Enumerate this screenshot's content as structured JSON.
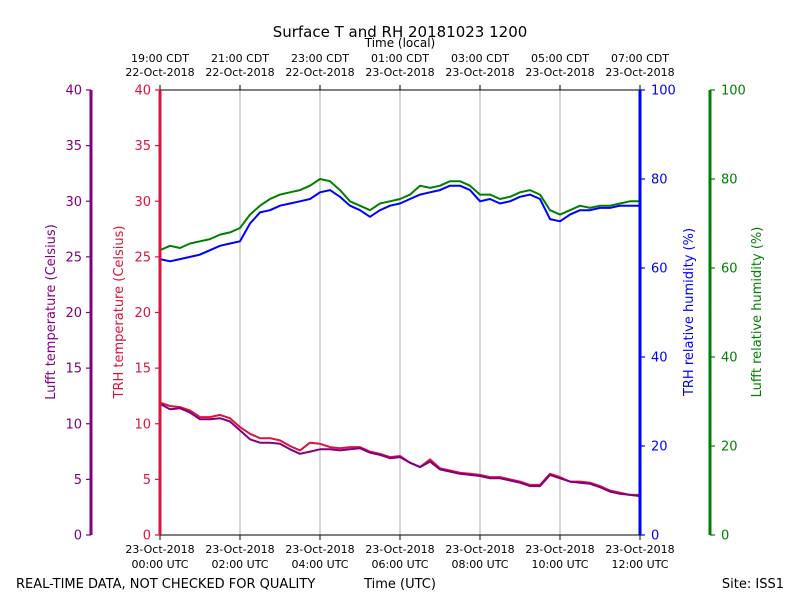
{
  "chart_data": {
    "type": "line",
    "title": "Surface T and RH 20181023 1200",
    "footer_left": "REAL-TIME DATA, NOT CHECKED FOR QUALITY",
    "footer_center": "Time (UTC)",
    "footer_right": "Site: ISS1",
    "top_axis_label": "Time (local)",
    "top_ticks": [
      {
        "line1": "19:00 CDT",
        "line2": "22-Oct-2018",
        "hour": 0
      },
      {
        "line1": "21:00 CDT",
        "line2": "22-Oct-2018",
        "hour": 2
      },
      {
        "line1": "23:00 CDT",
        "line2": "22-Oct-2018",
        "hour": 4
      },
      {
        "line1": "01:00 CDT",
        "line2": "23-Oct-2018",
        "hour": 6
      },
      {
        "line1": "03:00 CDT",
        "line2": "23-Oct-2018",
        "hour": 8
      },
      {
        "line1": "05:00 CDT",
        "line2": "23-Oct-2018",
        "hour": 10
      },
      {
        "line1": "07:00 CDT",
        "line2": "23-Oct-2018",
        "hour": 12
      }
    ],
    "bottom_ticks": [
      {
        "line1": "23-Oct-2018",
        "line2": "00:00 UTC",
        "hour": 0
      },
      {
        "line1": "23-Oct-2018",
        "line2": "02:00 UTC",
        "hour": 2
      },
      {
        "line1": "23-Oct-2018",
        "line2": "04:00 UTC",
        "hour": 4
      },
      {
        "line1": "23-Oct-2018",
        "line2": "06:00 UTC",
        "hour": 6
      },
      {
        "line1": "23-Oct-2018",
        "line2": "08:00 UTC",
        "hour": 8
      },
      {
        "line1": "23-Oct-2018",
        "line2": "10:00 UTC",
        "hour": 10
      },
      {
        "line1": "23-Oct-2018",
        "line2": "12:00 UTC",
        "hour": 12
      }
    ],
    "xlim_hours": [
      0,
      12
    ],
    "vertical_grid": true,
    "axes": {
      "lufft_temp": {
        "label": "Lufft temperature (Celsius)",
        "ylim": [
          0,
          40
        ],
        "ticks": [
          "0",
          "5",
          "10",
          "15",
          "20",
          "25",
          "30",
          "35",
          "40"
        ],
        "color": "#800080"
      },
      "trh_temp": {
        "label": "TRH temperature (Celsius)",
        "ylim": [
          0,
          40
        ],
        "ticks": [
          "0",
          "5",
          "10",
          "15",
          "20",
          "25",
          "30",
          "35",
          "40"
        ],
        "color": "#dc143c"
      },
      "trh_rh": {
        "label": "TRH relative humidity (%)",
        "ylim": [
          0,
          100
        ],
        "ticks": [
          "0",
          "20",
          "40",
          "60",
          "80",
          "100"
        ],
        "color": "#0000ff"
      },
      "lufft_rh": {
        "label": "Lufft relative humidity (%)",
        "ylim": [
          0,
          100
        ],
        "ticks": [
          "0",
          "20",
          "40",
          "60",
          "80",
          "100"
        ],
        "color": "#008000"
      }
    },
    "series": [
      {
        "axis": "lufft_rh",
        "color": "#008000",
        "x": [
          0,
          0.25,
          0.5,
          0.75,
          1,
          1.25,
          1.5,
          1.75,
          2,
          2.25,
          2.5,
          2.75,
          3,
          3.25,
          3.5,
          3.75,
          4,
          4.25,
          4.5,
          4.75,
          5,
          5.25,
          5.5,
          5.75,
          6,
          6.25,
          6.5,
          6.75,
          7,
          7.25,
          7.5,
          7.75,
          8,
          8.25,
          8.5,
          8.75,
          9,
          9.25,
          9.5,
          9.75,
          10,
          10.25,
          10.5,
          10.75,
          11,
          11.25,
          11.5,
          11.75,
          12
        ],
        "y": [
          64,
          65,
          64.5,
          65.5,
          66,
          66.5,
          67.5,
          68,
          69,
          72,
          74,
          75.5,
          76.5,
          77,
          77.5,
          78.5,
          80,
          79.5,
          77.5,
          75,
          74,
          73,
          74.5,
          75,
          75.5,
          76.5,
          78.5,
          78,
          78.5,
          79.5,
          79.5,
          78.5,
          76.5,
          76.5,
          75.5,
          76,
          77,
          77.5,
          76.5,
          73,
          72,
          73,
          74,
          73.5,
          74,
          74,
          74.5,
          75,
          75
        ]
      },
      {
        "axis": "trh_rh",
        "color": "#0000ff",
        "x": [
          0,
          0.25,
          0.5,
          0.75,
          1,
          1.25,
          1.5,
          1.75,
          2,
          2.25,
          2.5,
          2.75,
          3,
          3.25,
          3.5,
          3.75,
          4,
          4.25,
          4.5,
          4.75,
          5,
          5.25,
          5.5,
          5.75,
          6,
          6.25,
          6.5,
          6.75,
          7,
          7.25,
          7.5,
          7.75,
          8,
          8.25,
          8.5,
          8.75,
          9,
          9.25,
          9.5,
          9.75,
          10,
          10.25,
          10.5,
          10.75,
          11,
          11.25,
          11.5,
          11.75,
          12
        ],
        "y": [
          62,
          61.5,
          62,
          62.5,
          63,
          64,
          65,
          65.5,
          66,
          70,
          72.5,
          73,
          74,
          74.5,
          75,
          75.5,
          77,
          77.5,
          76,
          74,
          73,
          71.5,
          73,
          74,
          74.5,
          75.5,
          76.5,
          77,
          77.5,
          78.5,
          78.5,
          77.5,
          75,
          75.5,
          74.5,
          75,
          76,
          76.5,
          75.5,
          71,
          70.5,
          72,
          73,
          73,
          73.5,
          73.5,
          74,
          74,
          74
        ]
      },
      {
        "axis": "trh_temp",
        "color": "#dc143c",
        "x": [
          0,
          0.25,
          0.5,
          0.75,
          1,
          1.25,
          1.5,
          1.75,
          2,
          2.25,
          2.5,
          2.75,
          3,
          3.25,
          3.5,
          3.75,
          4,
          4.25,
          4.5,
          4.75,
          5,
          5.25,
          5.5,
          5.75,
          6,
          6.25,
          6.5,
          6.75,
          7,
          7.25,
          7.5,
          7.75,
          8,
          8.25,
          8.5,
          8.75,
          9,
          9.25,
          9.5,
          9.75,
          10,
          10.25,
          10.5,
          10.75,
          11,
          11.25,
          11.5,
          11.75,
          12
        ],
        "y": [
          11.9,
          11.6,
          11.5,
          11.2,
          10.6,
          10.6,
          10.8,
          10.5,
          9.7,
          9.1,
          8.7,
          8.7,
          8.5,
          8.0,
          7.6,
          8.3,
          8.2,
          7.9,
          7.8,
          7.9,
          7.9,
          7.5,
          7.3,
          7.0,
          7.1,
          6.5,
          6.1,
          6.8,
          6.0,
          5.8,
          5.6,
          5.5,
          5.4,
          5.2,
          5.2,
          5.0,
          4.8,
          4.5,
          4.5,
          5.5,
          5.2,
          4.8,
          4.8,
          4.7,
          4.4,
          4.0,
          3.8,
          3.6,
          3.6
        ]
      },
      {
        "axis": "lufft_temp",
        "color": "#800080",
        "x": [
          0,
          0.25,
          0.5,
          0.75,
          1,
          1.25,
          1.5,
          1.75,
          2,
          2.25,
          2.5,
          2.75,
          3,
          3.25,
          3.5,
          3.75,
          4,
          4.25,
          4.5,
          4.75,
          5,
          5.25,
          5.5,
          5.75,
          6,
          6.25,
          6.5,
          6.75,
          7,
          7.25,
          7.5,
          7.75,
          8,
          8.25,
          8.5,
          8.75,
          9,
          9.25,
          9.5,
          9.75,
          10,
          10.25,
          10.5,
          10.75,
          11,
          11.25,
          11.5,
          11.75,
          12
        ],
        "y": [
          11.8,
          11.3,
          11.4,
          11.0,
          10.4,
          10.4,
          10.5,
          10.2,
          9.4,
          8.6,
          8.3,
          8.3,
          8.2,
          7.7,
          7.3,
          7.5,
          7.7,
          7.7,
          7.6,
          7.7,
          7.8,
          7.4,
          7.2,
          6.9,
          7.0,
          6.5,
          6.1,
          6.6,
          5.9,
          5.7,
          5.5,
          5.4,
          5.3,
          5.1,
          5.1,
          4.9,
          4.7,
          4.4,
          4.4,
          5.4,
          5.1,
          4.8,
          4.7,
          4.6,
          4.3,
          3.9,
          3.7,
          3.6,
          3.5
        ]
      }
    ]
  }
}
